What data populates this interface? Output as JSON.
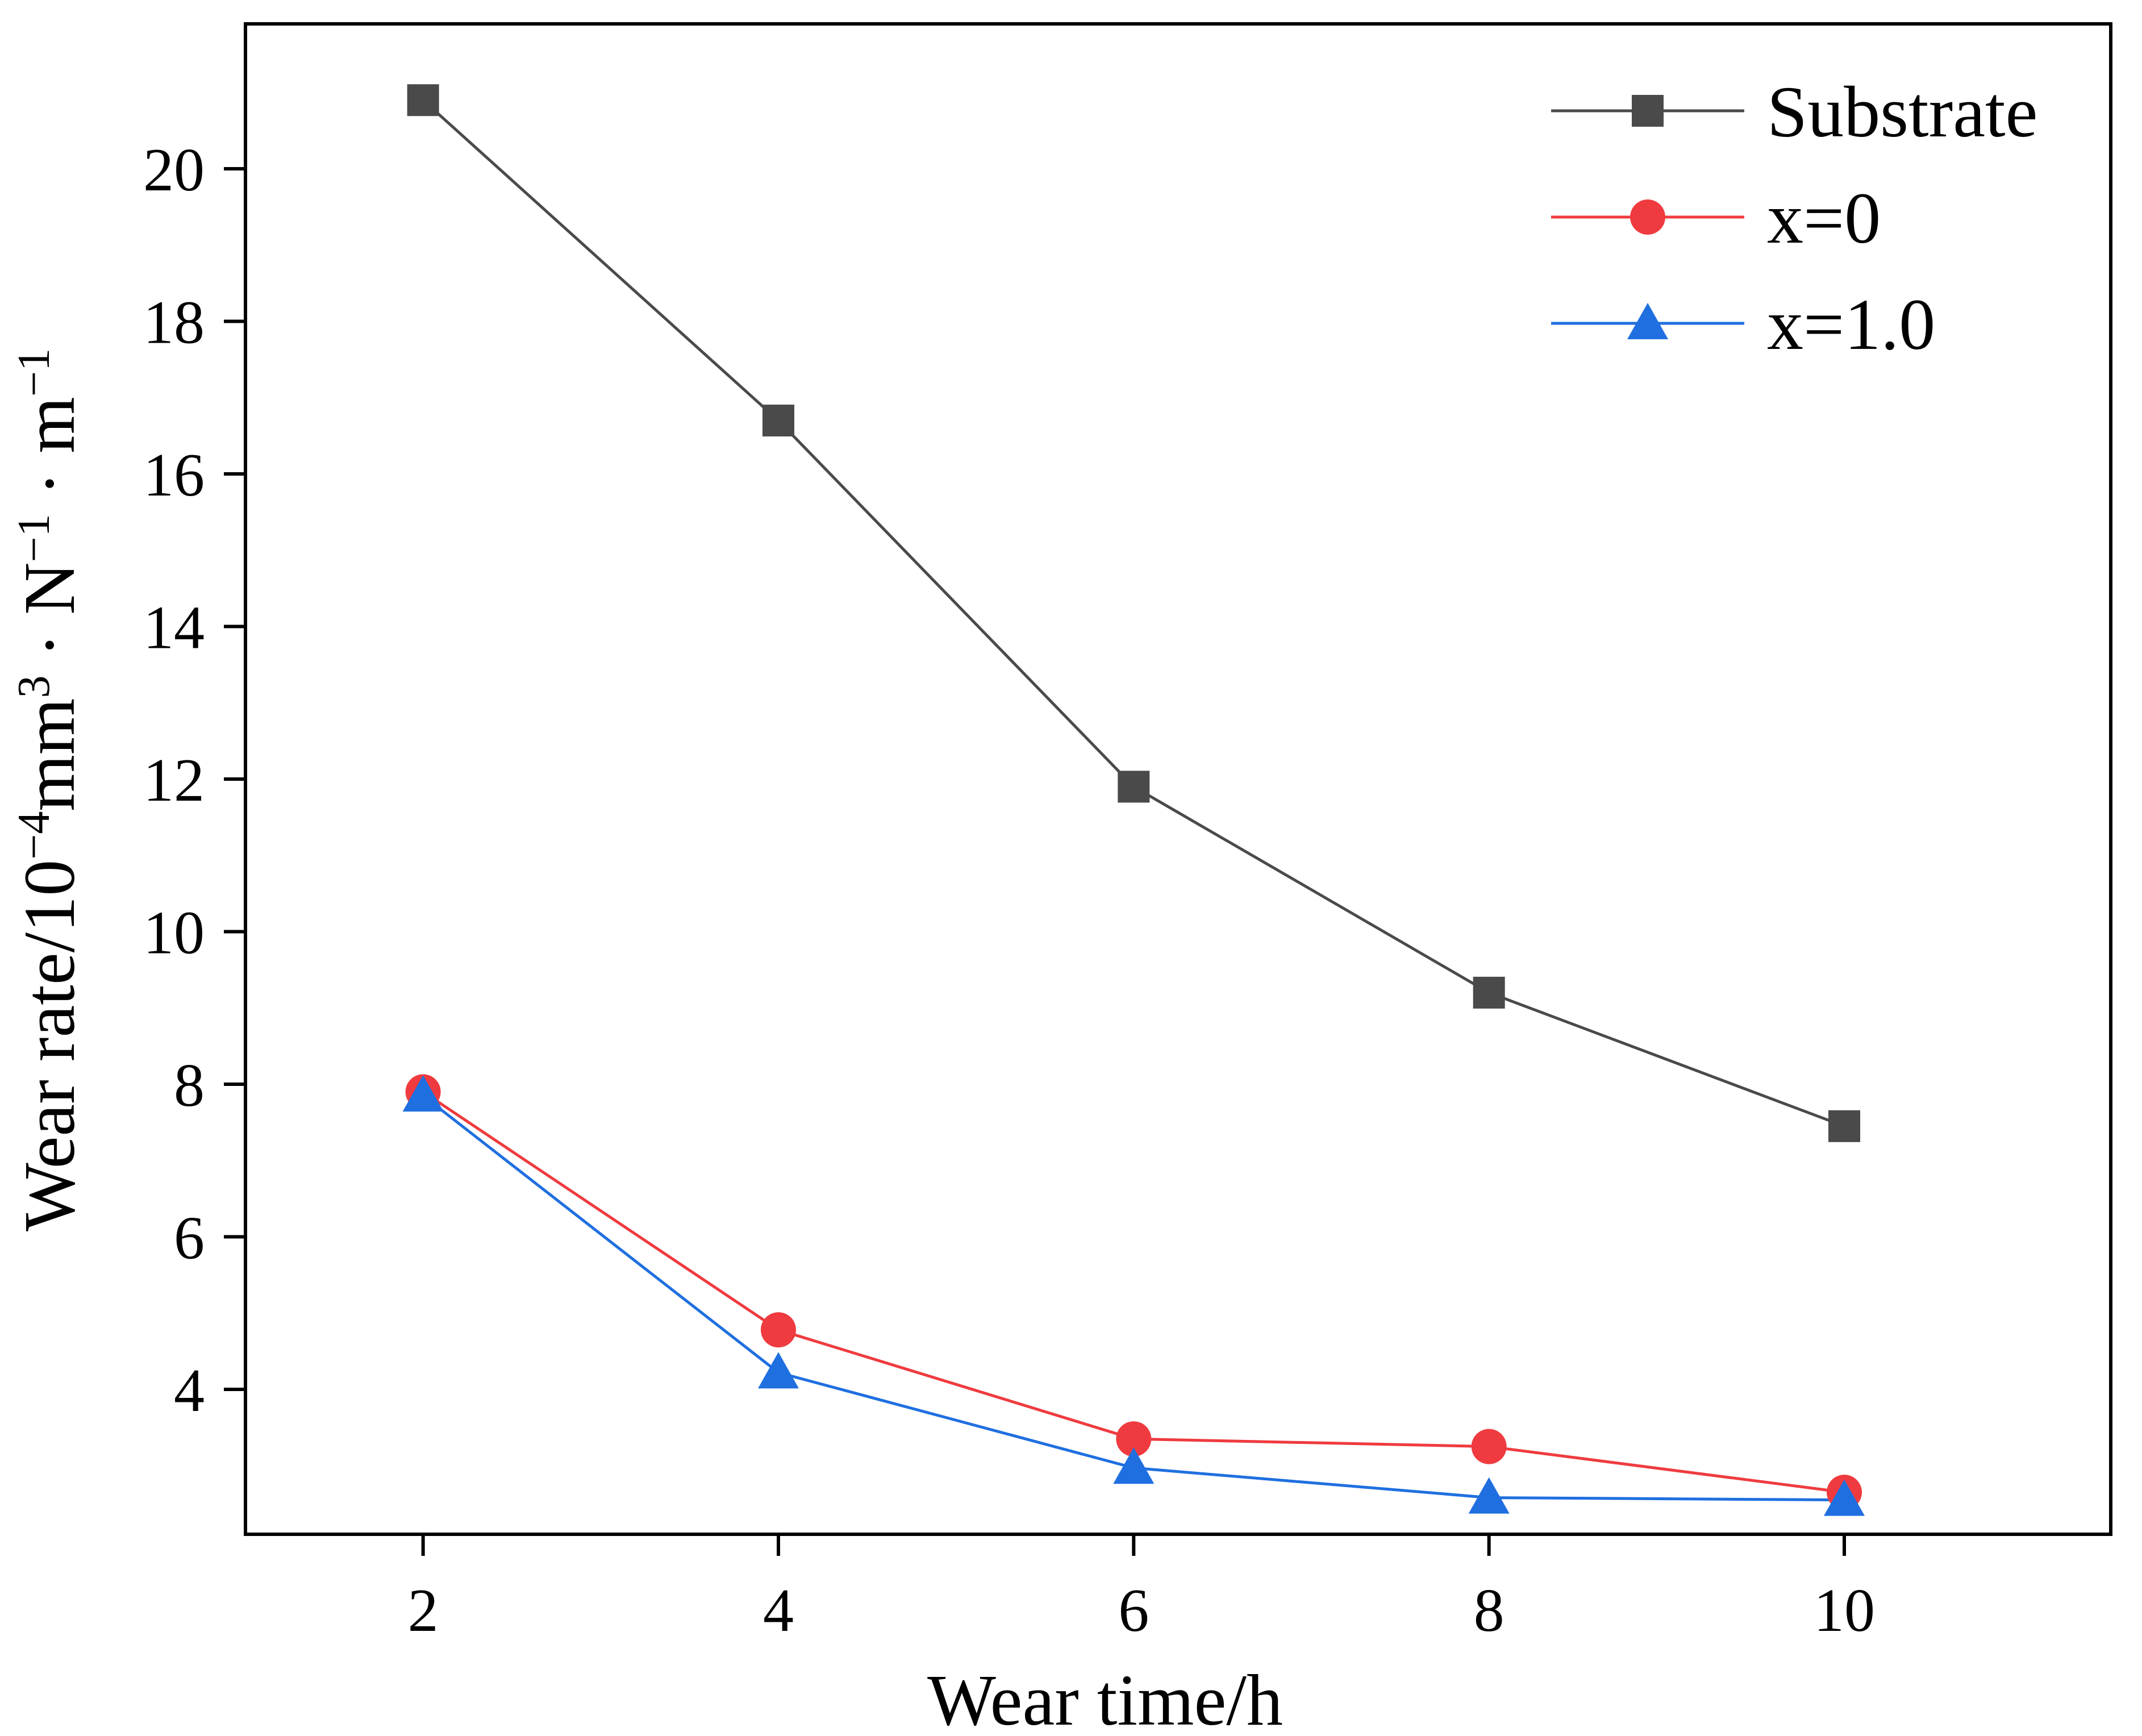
{
  "chart_data": {
    "type": "line",
    "title": "",
    "xlabel": "Wear time/h",
    "ylabel": {
      "parts": [
        "Wear rate/10",
        "−4",
        "mm",
        "3",
        " · N",
        "−1",
        " · m",
        "−1"
      ],
      "full": "Wear rate/10⁻⁴mm³ · N⁻¹ · m⁻¹"
    },
    "x": [
      2,
      4,
      6,
      8,
      10
    ],
    "xlim": [
      1,
      11.5
    ],
    "ylim": [
      2.1,
      21.9
    ],
    "xticks": [
      "2",
      "4",
      "6",
      "8",
      "10"
    ],
    "yticks": [
      "4",
      "6",
      "8",
      "10",
      "12",
      "14",
      "16",
      "18",
      "20"
    ],
    "legend_position": "top-right",
    "grid": false,
    "series": [
      {
        "name": "Substrate",
        "color": "#4a4a4a",
        "marker": "square",
        "values": [
          20.9,
          16.7,
          11.9,
          9.2,
          7.45
        ]
      },
      {
        "name": "x=0",
        "color": "#ef3b3f",
        "marker": "circle",
        "values": [
          7.9,
          4.78,
          3.35,
          3.25,
          2.65
        ]
      },
      {
        "name": "x=1.0",
        "color": "#1f6fe0",
        "marker": "triangle",
        "values": [
          7.85,
          4.22,
          2.97,
          2.58,
          2.55
        ]
      }
    ]
  }
}
